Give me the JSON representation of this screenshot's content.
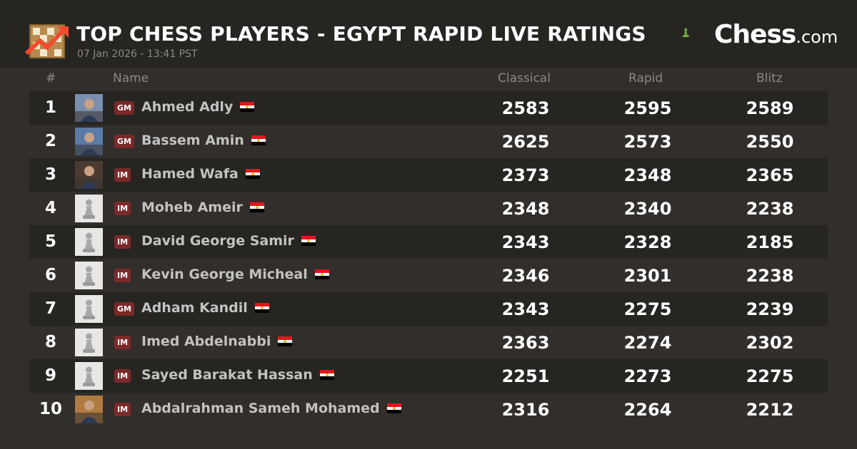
{
  "header": {
    "title": "TOP CHESS PLAYERS - EGYPT RAPID LIVE RATINGS",
    "subtitle": "07 Jan 2026 - 13:41 PST",
    "logo_icon": "chessboard-trending-up-icon",
    "brand": {
      "name": "Chess",
      "suffix": ".com",
      "icon": "green-pawn-icon"
    }
  },
  "columns": {
    "rank": "#",
    "name": "Name",
    "classical": "Classical",
    "rapid": "Rapid",
    "blitz": "Blitz"
  },
  "colors": {
    "header_bg": "#262522",
    "body_bg": "#312e2b",
    "dark_row": "#262522",
    "title_badge": "#7c2929",
    "brand_green": "#81b64c"
  },
  "players": [
    {
      "rank": "1",
      "title": "GM",
      "name": "Ahmed Adly",
      "country": "Egypt",
      "avatar": "photo",
      "classical": "2583",
      "rapid": "2595",
      "blitz": "2589"
    },
    {
      "rank": "2",
      "title": "GM",
      "name": "Bassem Amin",
      "country": "Egypt",
      "avatar": "photo",
      "classical": "2625",
      "rapid": "2573",
      "blitz": "2550"
    },
    {
      "rank": "3",
      "title": "IM",
      "name": "Hamed Wafa",
      "country": "Egypt",
      "avatar": "photo",
      "classical": "2373",
      "rapid": "2348",
      "blitz": "2365"
    },
    {
      "rank": "4",
      "title": "IM",
      "name": "Moheb Ameir",
      "country": "Egypt",
      "avatar": "pawn",
      "classical": "2348",
      "rapid": "2340",
      "blitz": "2238"
    },
    {
      "rank": "5",
      "title": "IM",
      "name": "David George Samir",
      "country": "Egypt",
      "avatar": "pawn",
      "classical": "2343",
      "rapid": "2328",
      "blitz": "2185"
    },
    {
      "rank": "6",
      "title": "IM",
      "name": "Kevin George Micheal",
      "country": "Egypt",
      "avatar": "pawn",
      "classical": "2346",
      "rapid": "2301",
      "blitz": "2238"
    },
    {
      "rank": "7",
      "title": "GM",
      "name": "Adham Kandil",
      "country": "Egypt",
      "avatar": "pawn",
      "classical": "2343",
      "rapid": "2275",
      "blitz": "2239"
    },
    {
      "rank": "8",
      "title": "IM",
      "name": "Imed Abdelnabbi",
      "country": "Egypt",
      "avatar": "pawn",
      "classical": "2363",
      "rapid": "2274",
      "blitz": "2302"
    },
    {
      "rank": "9",
      "title": "IM",
      "name": "Sayed Barakat Hassan",
      "country": "Egypt",
      "avatar": "pawn",
      "classical": "2251",
      "rapid": "2273",
      "blitz": "2275"
    },
    {
      "rank": "10",
      "title": "IM",
      "name": "Abdalrahman Sameh Mohamed",
      "country": "Egypt",
      "avatar": "photo",
      "classical": "2316",
      "rapid": "2264",
      "blitz": "2212"
    }
  ]
}
